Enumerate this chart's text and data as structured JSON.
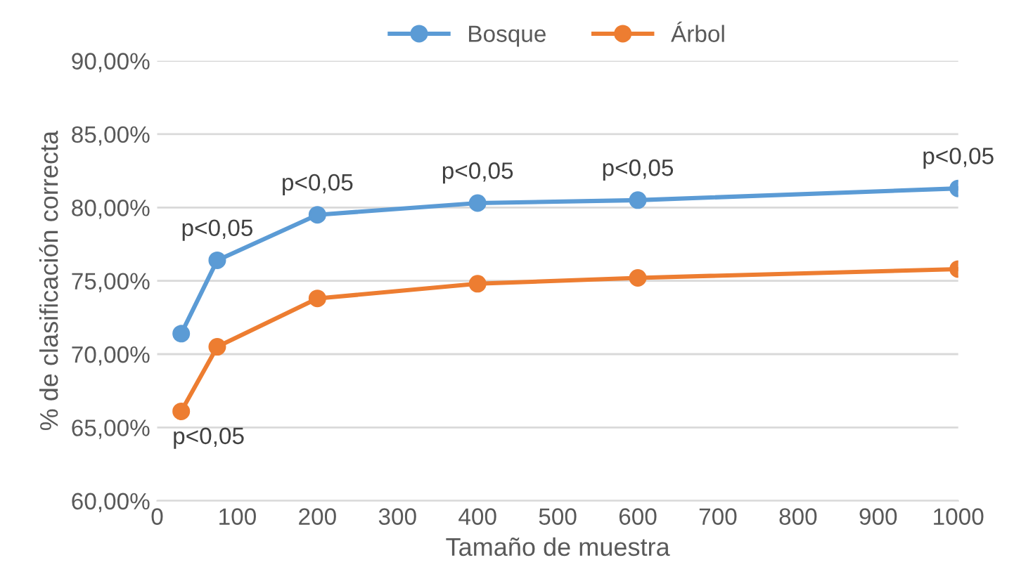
{
  "chart_data": {
    "type": "line",
    "xlabel": "Tamaño de muestra",
    "ylabel": "% de clasificación correcta",
    "series": [
      {
        "name": "Bosque",
        "color": "#5b9bd5",
        "x": [
          30,
          75,
          200,
          400,
          600,
          1000
        ],
        "values": [
          71.4,
          76.4,
          79.5,
          80.3,
          80.5,
          81.3
        ]
      },
      {
        "name": "Árbol",
        "color": "#ed7d31",
        "x": [
          30,
          75,
          200,
          400,
          600,
          1000
        ],
        "values": [
          66.1,
          70.5,
          73.8,
          74.8,
          75.2,
          75.8
        ]
      }
    ],
    "xlim": [
      0,
      1000
    ],
    "xticks": [
      0,
      100,
      200,
      300,
      400,
      500,
      600,
      700,
      800,
      900,
      1000
    ],
    "ylim": [
      60,
      90
    ],
    "yticks": [
      {
        "value": 60,
        "label": "60,00%"
      },
      {
        "value": 65,
        "label": "65,00%"
      },
      {
        "value": 70,
        "label": "70,00%"
      },
      {
        "value": 75,
        "label": "75,00%"
      },
      {
        "value": 80,
        "label": "80,00%"
      },
      {
        "value": 85,
        "label": "85,00%"
      },
      {
        "value": 90,
        "label": "90,00%"
      }
    ],
    "annotations": [
      {
        "text": "p<0,05",
        "x": 75,
        "y": 76.4
      },
      {
        "text": "p<0,05",
        "x": 200,
        "y": 79.5
      },
      {
        "text": "p<0,05",
        "x": 400,
        "y": 80.3
      },
      {
        "text": "p<0,05",
        "x": 600,
        "y": 80.5
      },
      {
        "text": "p<0,05",
        "x": 1000,
        "y": 81.3
      },
      {
        "text": "p<0,05",
        "x": 30,
        "y": 66.1
      }
    ],
    "grid": "y",
    "legend": "top",
    "marker": "circle",
    "line_style": "solid"
  }
}
